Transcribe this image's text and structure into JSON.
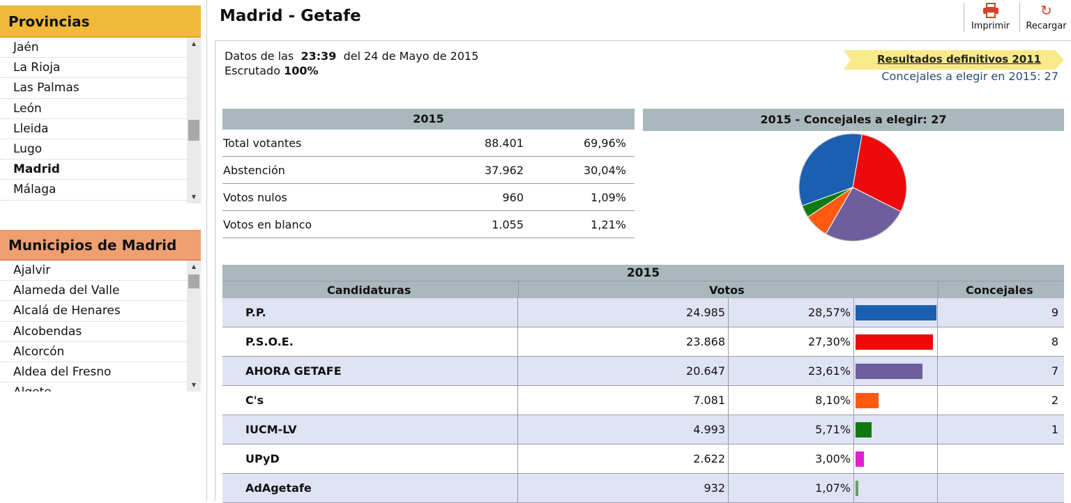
{
  "sidebar": {
    "provincias": {
      "title": "Provincias",
      "items": [
        "Jaén",
        "La Rioja",
        "Las Palmas",
        "León",
        "Lleida",
        "Lugo",
        "Madrid",
        "Málaga"
      ],
      "selected": "Madrid"
    },
    "municipios": {
      "title": "Municipios de Madrid",
      "items": [
        "Ajalvir",
        "Alameda del Valle",
        "Alcalá de Henares",
        "Alcobendas",
        "Alcorcón",
        "Aldea del Fresno",
        "Algete"
      ]
    }
  },
  "header": {
    "title": "Madrid - Getafe",
    "print_label": "Imprimir",
    "reload_label": "Recargar"
  },
  "datos": {
    "prefix": "Datos de las",
    "time": "23:39",
    "date": "del 24 de Mayo de 2015",
    "escrutado_label": "Escrutado",
    "escrutado_value": "100%"
  },
  "banner": {
    "link": "Resultados definitivos 2011",
    "concejales_line": "Concejales a elegir en 2015: 27"
  },
  "summary": {
    "year": "2015",
    "rows": [
      {
        "label": "Total votantes",
        "value": "88.401",
        "pct": "69,96%"
      },
      {
        "label": "Abstención",
        "value": "37.962",
        "pct": "30,04%"
      },
      {
        "label": "Votos nulos",
        "value": "960",
        "pct": "1,09%"
      },
      {
        "label": "Votos en blanco",
        "value": "1.055",
        "pct": "1,21%"
      }
    ]
  },
  "pie": {
    "title": "2015 - Concejales a elegir: 27",
    "slices": [
      {
        "party": "P.P.",
        "value": 9,
        "color": "#1a5fb0"
      },
      {
        "party": "P.S.O.E.",
        "value": 8,
        "color": "#ee0a0a"
      },
      {
        "party": "AHORA GETAFE",
        "value": 7,
        "color": "#6f5e9e"
      },
      {
        "party": "C's",
        "value": 2,
        "color": "#ff5a10"
      },
      {
        "party": "IUCM-LV",
        "value": 1,
        "color": "#0f7a10"
      }
    ]
  },
  "candidaturas": {
    "year": "2015",
    "col_candidaturas": "Candidaturas",
    "col_votos": "Votos",
    "col_concejales": "Concejales",
    "rows": [
      {
        "name": "P.P.",
        "votes": "24.985",
        "pct": "28,57%",
        "share": 28.57,
        "color": "#1a5fb0",
        "concejales": "9"
      },
      {
        "name": "P.S.O.E.",
        "votes": "23.868",
        "pct": "27,30%",
        "share": 27.3,
        "color": "#ee0a0a",
        "concejales": "8"
      },
      {
        "name": "AHORA GETAFE",
        "votes": "20.647",
        "pct": "23,61%",
        "share": 23.61,
        "color": "#6f5e9e",
        "concejales": "7"
      },
      {
        "name": "C's",
        "votes": "7.081",
        "pct": "8,10%",
        "share": 8.1,
        "color": "#ff5a10",
        "concejales": "2"
      },
      {
        "name": "IUCM-LV",
        "votes": "4.993",
        "pct": "5,71%",
        "share": 5.71,
        "color": "#0f7a10",
        "concejales": "1"
      },
      {
        "name": "UPyD",
        "votes": "2.622",
        "pct": "3,00%",
        "share": 3.0,
        "color": "#e020d0",
        "concejales": ""
      },
      {
        "name": "AdAgetafe",
        "votes": "932",
        "pct": "1,07%",
        "share": 1.07,
        "color": "#6a9a6a",
        "concejales": ""
      }
    ]
  }
}
